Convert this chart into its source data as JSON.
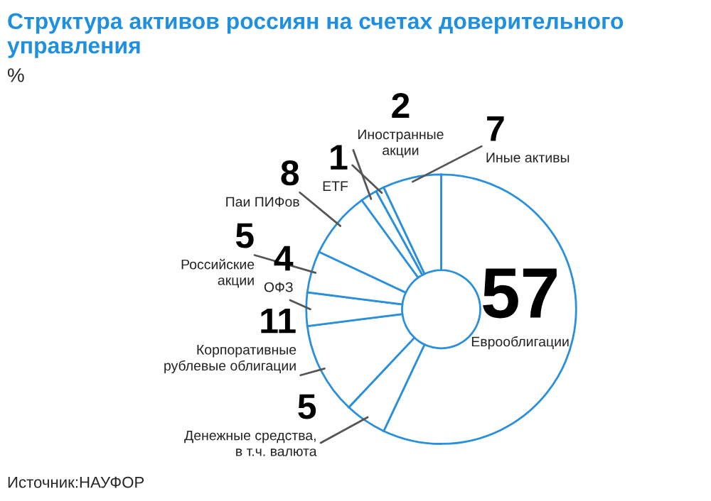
{
  "chart_data": {
    "type": "donut",
    "title": "Структура активов россиян на счетах доверительного управления",
    "subtitle": "%",
    "categories": [
      "Еврооблигации",
      "Денежные средства,\nв т.ч. валюта",
      "Корпоративные\nрублевые облигации",
      "ОФЗ",
      "Российские\nакции",
      "Паи ПИФов",
      "Иностранные\nакции",
      "ETF",
      "Иные активы"
    ],
    "values": [
      57,
      5,
      11,
      4,
      5,
      8,
      2,
      1,
      7
    ],
    "colors": [
      "#ffffff",
      "#ffffff",
      "#ffffff",
      "#ffffff",
      "#ffffff",
      "#ffffff",
      "#ffffff",
      "#ffffff",
      "#ffffff"
    ],
    "data_labels": true,
    "legend": false,
    "annotations": [
      "Источник:НАУФОР"
    ]
  }
}
